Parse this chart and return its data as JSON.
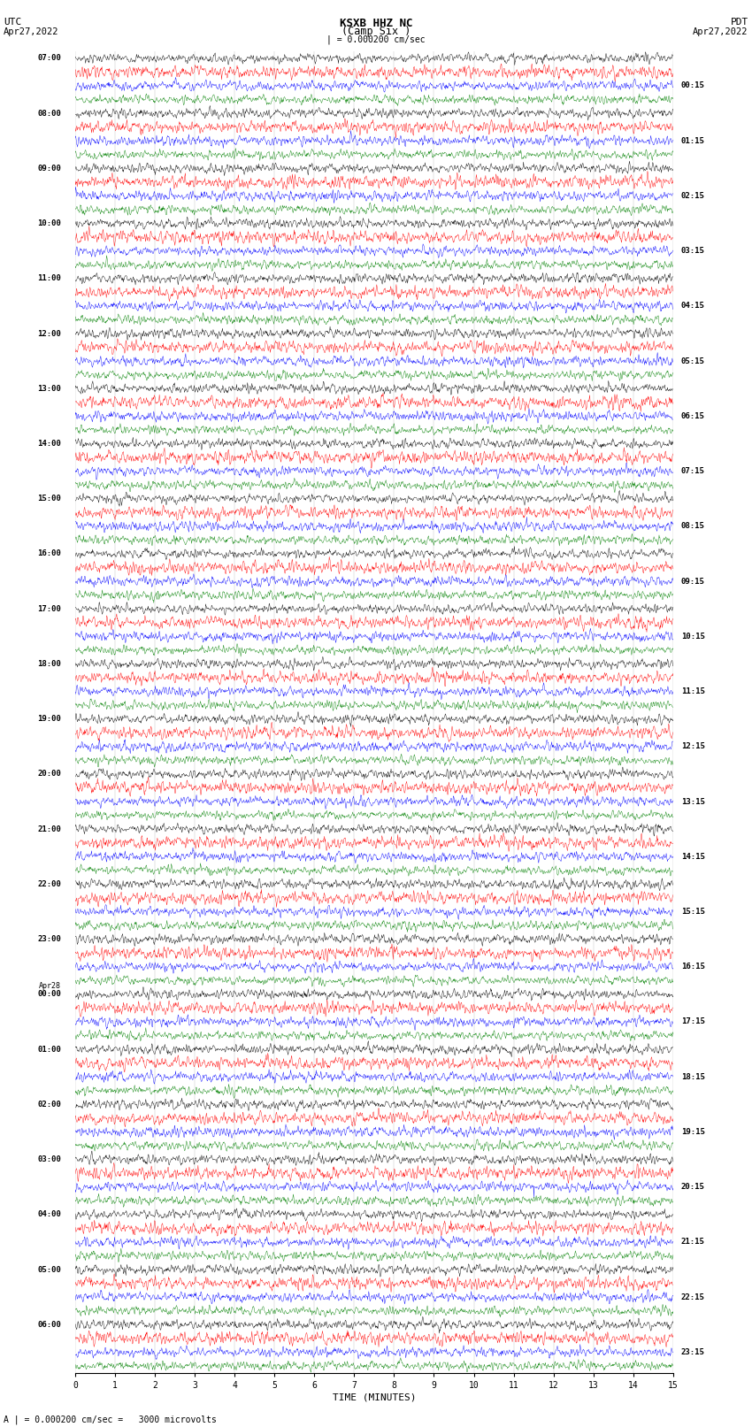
{
  "title": "KSXB HHZ NC",
  "subtitle": "(Camp Six )",
  "left_label_top": "UTC",
  "left_label_date": "Apr27,2022",
  "right_label_top": "PDT",
  "right_label_date": "Apr27,2022",
  "scale_marker": "| = 0.000200 cm/sec",
  "bottom_label": "TIME (MINUTES)",
  "bottom_note": "A | = 0.000200 cm/sec =   3000 microvolts",
  "left_times": [
    "07:00",
    "08:00",
    "09:00",
    "10:00",
    "11:00",
    "12:00",
    "13:00",
    "14:00",
    "15:00",
    "16:00",
    "17:00",
    "18:00",
    "19:00",
    "20:00",
    "21:00",
    "22:00",
    "23:00",
    "Apr28",
    "00:00",
    "01:00",
    "02:00",
    "03:00",
    "04:00",
    "05:00",
    "06:00"
  ],
  "right_times": [
    "00:15",
    "01:15",
    "02:15",
    "03:15",
    "04:15",
    "05:15",
    "06:15",
    "07:15",
    "08:15",
    "09:15",
    "10:15",
    "11:15",
    "12:15",
    "13:15",
    "14:15",
    "15:15",
    "16:15",
    "17:15",
    "18:15",
    "19:15",
    "20:15",
    "21:15",
    "22:15",
    "23:15"
  ],
  "colors": [
    "black",
    "red",
    "blue",
    "green"
  ],
  "n_rows": 96,
  "n_cols": 1500,
  "x_min": 0,
  "x_max": 15,
  "x_ticks": [
    0,
    1,
    2,
    3,
    4,
    5,
    6,
    7,
    8,
    9,
    10,
    11,
    12,
    13,
    14,
    15
  ],
  "fig_width": 8.5,
  "fig_height": 16.13,
  "bg_color": "white",
  "trace_amplitude": 0.42,
  "noise_seed": 42
}
